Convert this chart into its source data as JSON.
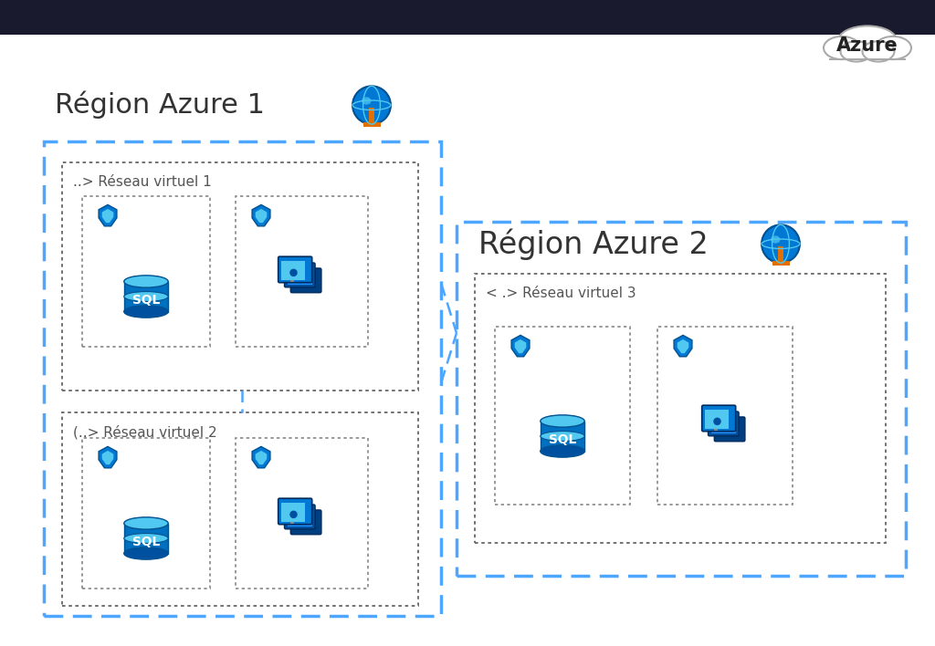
{
  "title": "Azure",
  "region1_label": "Région Azure 1",
  "region2_label": "Région Azure 2",
  "vnet1_label": "..> Réseau virtuel 1",
  "vnet2_label": "(..> Réseau virtuel 2",
  "vnet3_label": "< .> Réseau virtuel 3",
  "dashed_blue": "#4da6ff",
  "dotted_dark": "#555555",
  "dotted_light": "#888888",
  "header_dark": "#1a1a2e",
  "white": "#ffffff",
  "bg": "#f8f8f8",
  "sql_body": "#0078d4",
  "sql_top": "#50e6ff",
  "sql_dark": "#005a9e",
  "shield_blue": "#0078d4",
  "shield_light": "#50c8f0",
  "monitor_dark": "#003f7f",
  "monitor_mid": "#0050a0",
  "monitor_light": "#1e90ff",
  "globe_blue": "#0078d4",
  "globe_light": "#50c8f0",
  "text_dark": "#444444",
  "text_region": "#333333"
}
